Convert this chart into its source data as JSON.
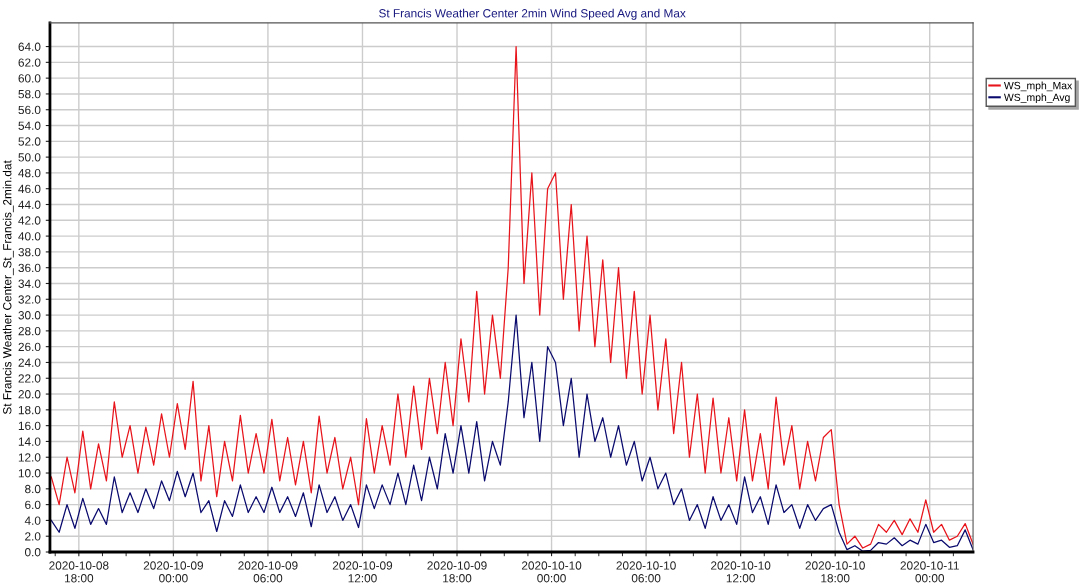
{
  "chart_data": {
    "type": "line",
    "title": "St Francis Weather Center 2min Wind Speed Avg and Max",
    "ylabel": "St Francis Weather Center_St_Francis_2min.dat",
    "x": [
      "2020-10-08T16:15",
      "2020-10-08T16:45",
      "2020-10-08T17:15",
      "2020-10-08T17:45",
      "2020-10-08T18:15",
      "2020-10-08T18:45",
      "2020-10-08T19:15",
      "2020-10-08T19:45",
      "2020-10-08T20:15",
      "2020-10-08T20:45",
      "2020-10-08T21:15",
      "2020-10-08T21:45",
      "2020-10-08T22:15",
      "2020-10-08T22:45",
      "2020-10-08T23:15",
      "2020-10-08T23:45",
      "2020-10-09T00:15",
      "2020-10-09T00:45",
      "2020-10-09T01:15",
      "2020-10-09T01:45",
      "2020-10-09T02:15",
      "2020-10-09T02:45",
      "2020-10-09T03:15",
      "2020-10-09T03:45",
      "2020-10-09T04:15",
      "2020-10-09T04:45",
      "2020-10-09T05:15",
      "2020-10-09T05:45",
      "2020-10-09T06:15",
      "2020-10-09T06:45",
      "2020-10-09T07:15",
      "2020-10-09T07:45",
      "2020-10-09T08:15",
      "2020-10-09T08:45",
      "2020-10-09T09:15",
      "2020-10-09T09:45",
      "2020-10-09T10:15",
      "2020-10-09T10:45",
      "2020-10-09T11:15",
      "2020-10-09T11:45",
      "2020-10-09T12:15",
      "2020-10-09T12:45",
      "2020-10-09T13:15",
      "2020-10-09T13:45",
      "2020-10-09T14:15",
      "2020-10-09T14:45",
      "2020-10-09T15:15",
      "2020-10-09T15:45",
      "2020-10-09T16:15",
      "2020-10-09T16:45",
      "2020-10-09T17:15",
      "2020-10-09T17:45",
      "2020-10-09T18:15",
      "2020-10-09T18:45",
      "2020-10-09T19:15",
      "2020-10-09T19:45",
      "2020-10-09T20:15",
      "2020-10-09T20:45",
      "2020-10-09T21:15",
      "2020-10-09T21:45",
      "2020-10-09T22:15",
      "2020-10-09T22:45",
      "2020-10-09T23:15",
      "2020-10-09T23:45",
      "2020-10-10T00:15",
      "2020-10-10T00:45",
      "2020-10-10T01:15",
      "2020-10-10T01:45",
      "2020-10-10T02:15",
      "2020-10-10T02:45",
      "2020-10-10T03:15",
      "2020-10-10T03:45",
      "2020-10-10T04:15",
      "2020-10-10T04:45",
      "2020-10-10T05:15",
      "2020-10-10T05:45",
      "2020-10-10T06:15",
      "2020-10-10T06:45",
      "2020-10-10T07:15",
      "2020-10-10T07:45",
      "2020-10-10T08:15",
      "2020-10-10T08:45",
      "2020-10-10T09:15",
      "2020-10-10T09:45",
      "2020-10-10T10:15",
      "2020-10-10T10:45",
      "2020-10-10T11:15",
      "2020-10-10T11:45",
      "2020-10-10T12:15",
      "2020-10-10T12:45",
      "2020-10-10T13:15",
      "2020-10-10T13:45",
      "2020-10-10T14:15",
      "2020-10-10T14:45",
      "2020-10-10T15:15",
      "2020-10-10T15:45",
      "2020-10-10T16:15",
      "2020-10-10T16:45",
      "2020-10-10T17:15",
      "2020-10-10T17:45",
      "2020-10-10T18:15",
      "2020-10-10T18:45",
      "2020-10-10T19:15",
      "2020-10-10T19:45",
      "2020-10-10T20:15",
      "2020-10-10T20:45",
      "2020-10-10T21:15",
      "2020-10-10T21:45",
      "2020-10-10T22:15",
      "2020-10-10T22:45",
      "2020-10-10T23:15",
      "2020-10-10T23:45",
      "2020-10-11T00:15",
      "2020-10-11T00:45",
      "2020-10-11T01:15",
      "2020-10-11T01:45",
      "2020-10-11T02:15",
      "2020-10-11T02:45"
    ],
    "series": [
      {
        "name": "WS_mph_Max",
        "color": "#e8141b",
        "values": [
          9.5,
          6,
          12,
          7.5,
          15.3,
          8,
          13.7,
          9,
          19,
          12,
          16,
          10,
          15.8,
          11,
          17.5,
          12,
          18.8,
          13,
          21.6,
          9,
          16,
          7,
          14,
          9,
          17.3,
          10,
          15,
          10,
          16.8,
          9,
          14.5,
          8.5,
          14,
          7.5,
          17.2,
          10,
          14.5,
          8,
          12,
          6,
          16.9,
          10,
          16,
          11,
          20,
          12,
          21,
          13,
          22,
          15,
          24,
          16,
          27,
          19,
          33,
          20,
          30,
          22,
          36,
          64,
          34,
          48,
          30,
          46,
          48,
          32,
          44,
          28,
          40,
          26,
          37,
          24,
          36,
          22,
          33,
          20,
          30,
          18,
          27,
          15,
          24,
          12,
          20,
          10,
          19.5,
          10,
          17,
          9,
          18,
          9,
          15,
          8,
          19.6,
          11,
          16,
          8,
          14,
          9,
          14.5,
          15.5,
          6,
          1,
          2,
          0.5,
          1,
          3.5,
          2.5,
          4,
          2.2,
          4.2,
          2.5,
          6.6,
          2.5,
          3.5,
          1.5,
          2,
          3.6,
          1
        ]
      },
      {
        "name": "WS_mph_Avg",
        "color": "#0a0a6e",
        "values": [
          4,
          2.5,
          6,
          3,
          6.8,
          3.5,
          5.5,
          3.5,
          9.5,
          5,
          7.5,
          5,
          8,
          5.5,
          9,
          6.5,
          10.2,
          7,
          10,
          5,
          6.5,
          2.6,
          6.5,
          4.5,
          8.5,
          5,
          7,
          5,
          8.2,
          5,
          7,
          4.5,
          7.5,
          3.2,
          8.5,
          5,
          7,
          4,
          6,
          3.1,
          8.5,
          5.5,
          8.5,
          6,
          10,
          6,
          11,
          6.5,
          12,
          8,
          15,
          10,
          16,
          10,
          16.5,
          9,
          14,
          11,
          19,
          30,
          17,
          24,
          14,
          26,
          24,
          16,
          22,
          12,
          20,
          14,
          17,
          12,
          16,
          11,
          14,
          9,
          12,
          8,
          10,
          6,
          8,
          4,
          6,
          3,
          7,
          4,
          6,
          3.5,
          9.5,
          5,
          7,
          3.5,
          8.5,
          5,
          6,
          3,
          6,
          4,
          5.5,
          6,
          2.5,
          0.3,
          0.8,
          0.1,
          0.2,
          1.2,
          1,
          1.8,
          0.8,
          1.5,
          1,
          3.5,
          1.2,
          1.5,
          0.6,
          0.8,
          2.8,
          0.3
        ]
      }
    ],
    "xlim": [
      "2020-10-08T16:10",
      "2020-10-11T02:45"
    ],
    "xticks": [
      {
        "value": "2020-10-08T16:30",
        "label": null
      },
      {
        "value": "2020-10-08T18:00",
        "label": "2020-10-08\n18:00"
      },
      {
        "value": "2020-10-08T19:30",
        "label": null
      },
      {
        "value": "2020-10-08T21:00",
        "label": null
      },
      {
        "value": "2020-10-08T22:30",
        "label": null
      },
      {
        "value": "2020-10-09T00:00",
        "label": "2020-10-09\n00:00"
      },
      {
        "value": "2020-10-09T01:30",
        "label": null
      },
      {
        "value": "2020-10-09T03:00",
        "label": null
      },
      {
        "value": "2020-10-09T04:30",
        "label": null
      },
      {
        "value": "2020-10-09T06:00",
        "label": "2020-10-09\n06:00"
      },
      {
        "value": "2020-10-09T07:30",
        "label": null
      },
      {
        "value": "2020-10-09T09:00",
        "label": null
      },
      {
        "value": "2020-10-09T10:30",
        "label": null
      },
      {
        "value": "2020-10-09T12:00",
        "label": "2020-10-09\n12:00"
      },
      {
        "value": "2020-10-09T13:30",
        "label": null
      },
      {
        "value": "2020-10-09T15:00",
        "label": null
      },
      {
        "value": "2020-10-09T16:30",
        "label": null
      },
      {
        "value": "2020-10-09T18:00",
        "label": "2020-10-09\n18:00"
      },
      {
        "value": "2020-10-09T19:30",
        "label": null
      },
      {
        "value": "2020-10-09T21:00",
        "label": null
      },
      {
        "value": "2020-10-09T22:30",
        "label": null
      },
      {
        "value": "2020-10-10T00:00",
        "label": "2020-10-10\n00:00"
      },
      {
        "value": "2020-10-10T01:30",
        "label": null
      },
      {
        "value": "2020-10-10T03:00",
        "label": null
      },
      {
        "value": "2020-10-10T04:30",
        "label": null
      },
      {
        "value": "2020-10-10T06:00",
        "label": "2020-10-10\n06:00"
      },
      {
        "value": "2020-10-10T07:30",
        "label": null
      },
      {
        "value": "2020-10-10T09:00",
        "label": null
      },
      {
        "value": "2020-10-10T10:30",
        "label": null
      },
      {
        "value": "2020-10-10T12:00",
        "label": "2020-10-10\n12:00"
      },
      {
        "value": "2020-10-10T13:30",
        "label": null
      },
      {
        "value": "2020-10-10T15:00",
        "label": null
      },
      {
        "value": "2020-10-10T16:30",
        "label": null
      },
      {
        "value": "2020-10-10T18:00",
        "label": "2020-10-10\n18:00"
      },
      {
        "value": "2020-10-10T19:30",
        "label": null
      },
      {
        "value": "2020-10-10T21:00",
        "label": null
      },
      {
        "value": "2020-10-10T22:30",
        "label": null
      },
      {
        "value": "2020-10-11T00:00",
        "label": "2020-10-11\n00:00"
      },
      {
        "value": "2020-10-11T01:30",
        "label": null
      }
    ],
    "ylim": [
      0,
      67
    ],
    "yticks": [
      {
        "value": 0,
        "label": "0.0"
      },
      {
        "value": 2,
        "label": "2.0"
      },
      {
        "value": 4,
        "label": "4.0"
      },
      {
        "value": 6,
        "label": "6.0"
      },
      {
        "value": 8,
        "label": "8.0"
      },
      {
        "value": 10,
        "label": "10.0"
      },
      {
        "value": 12,
        "label": "12.0"
      },
      {
        "value": 14,
        "label": "14.0"
      },
      {
        "value": 16,
        "label": "16.0"
      },
      {
        "value": 18,
        "label": "18.0"
      },
      {
        "value": 20,
        "label": "20.0"
      },
      {
        "value": 22,
        "label": "22.0"
      },
      {
        "value": 24,
        "label": "24.0"
      },
      {
        "value": 26,
        "label": "26.0"
      },
      {
        "value": 28,
        "label": "28.0"
      },
      {
        "value": 30,
        "label": "30.0"
      },
      {
        "value": 32,
        "label": "32.0"
      },
      {
        "value": 34,
        "label": "34.0"
      },
      {
        "value": 36,
        "label": "36.0"
      },
      {
        "value": 38,
        "label": "38.0"
      },
      {
        "value": 40,
        "label": "40.0"
      },
      {
        "value": 42,
        "label": "42.0"
      },
      {
        "value": 44,
        "label": "44.0"
      },
      {
        "value": 46,
        "label": "46.0"
      },
      {
        "value": 48,
        "label": "48.0"
      },
      {
        "value": 50,
        "label": "50.0"
      },
      {
        "value": 52,
        "label": "52.0"
      },
      {
        "value": 54,
        "label": "54.0"
      },
      {
        "value": 56,
        "label": "56.0"
      },
      {
        "value": 58,
        "label": "58.0"
      },
      {
        "value": 60,
        "label": "60.0"
      },
      {
        "value": 62,
        "label": "62.0"
      },
      {
        "value": 64,
        "label": "64.0"
      }
    ],
    "grid": true,
    "legend": "top right",
    "marker": "none",
    "line_style": "solid"
  }
}
